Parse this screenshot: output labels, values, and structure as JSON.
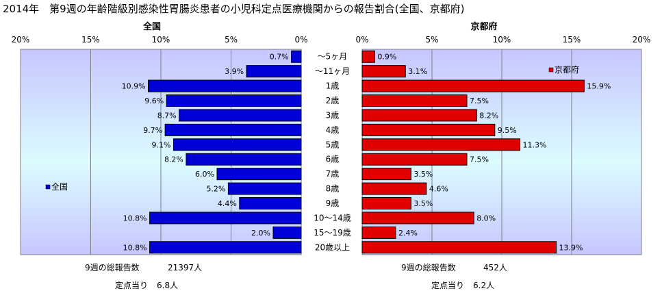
{
  "title": "2014年　第9週の年齢階級別感染性胃腸炎患者の小児科定点医療機関からの報告割合(全国、京都府)",
  "colors": {
    "national": "#0000d8",
    "kyoto": "#e00000",
    "bar_stroke": "#000000"
  },
  "chart_data": {
    "type": "bar",
    "orientation": "horizontal",
    "categories": [
      "〜5ヶ月",
      "〜11ヶ月",
      "1歳",
      "2歳",
      "3歳",
      "4歳",
      "5歳",
      "6歳",
      "7歳",
      "8歳",
      "9歳",
      "10〜14歳",
      "15〜19歳",
      "20歳以上"
    ],
    "series": [
      {
        "name": "全国",
        "panel": "left",
        "values": [
          0.7,
          3.9,
          10.9,
          9.6,
          8.7,
          9.7,
          9.1,
          8.2,
          6.0,
          5.2,
          4.4,
          10.8,
          2.0,
          10.8
        ],
        "labels": [
          "0.7%",
          "3.9%",
          "10.9%",
          "9.6%",
          "8.7%",
          "9.7%",
          "9.1%",
          "8.2%",
          "6.0%",
          "5.2%",
          "4.4%",
          "10.8%",
          "2.0%",
          "10.8%"
        ]
      },
      {
        "name": "京都府",
        "panel": "right",
        "values": [
          0.9,
          3.1,
          15.9,
          7.5,
          8.2,
          9.5,
          11.3,
          7.5,
          3.5,
          4.6,
          3.5,
          8.0,
          2.4,
          13.9
        ],
        "labels": [
          "0.9%",
          "3.1%",
          "15.9%",
          "7.5%",
          "8.2%",
          "9.5%",
          "11.3%",
          "7.5%",
          "3.5%",
          "4.6%",
          "3.5%",
          "8.0%",
          "2.4%",
          "13.9%"
        ]
      }
    ],
    "panel_titles": {
      "left": "全国",
      "right": "京都府"
    },
    "xlim": [
      0,
      20
    ],
    "ticks": [
      0,
      5,
      10,
      15,
      20
    ],
    "tick_labels_left": [
      "0%",
      "5%",
      "10%",
      "15%",
      "20%"
    ],
    "tick_labels_right": [
      "0%",
      "5%",
      "10%",
      "15%",
      "20%"
    ],
    "grid": true,
    "left_axis_reversed": true,
    "legend_left": {
      "label": "全国",
      "placement": "middle-left"
    },
    "legend_right": {
      "label": "京都府",
      "placement": "top-right"
    }
  },
  "footer": {
    "national_total_label": "9週の総報告数",
    "national_total_value": "21397人",
    "national_per_label": "定点当り",
    "national_per_value": "6.8人",
    "kyoto_total_label": "9週の総報告数",
    "kyoto_total_value": "452人",
    "kyoto_per_label": "定点当り",
    "kyoto_per_value": "6.2人"
  }
}
